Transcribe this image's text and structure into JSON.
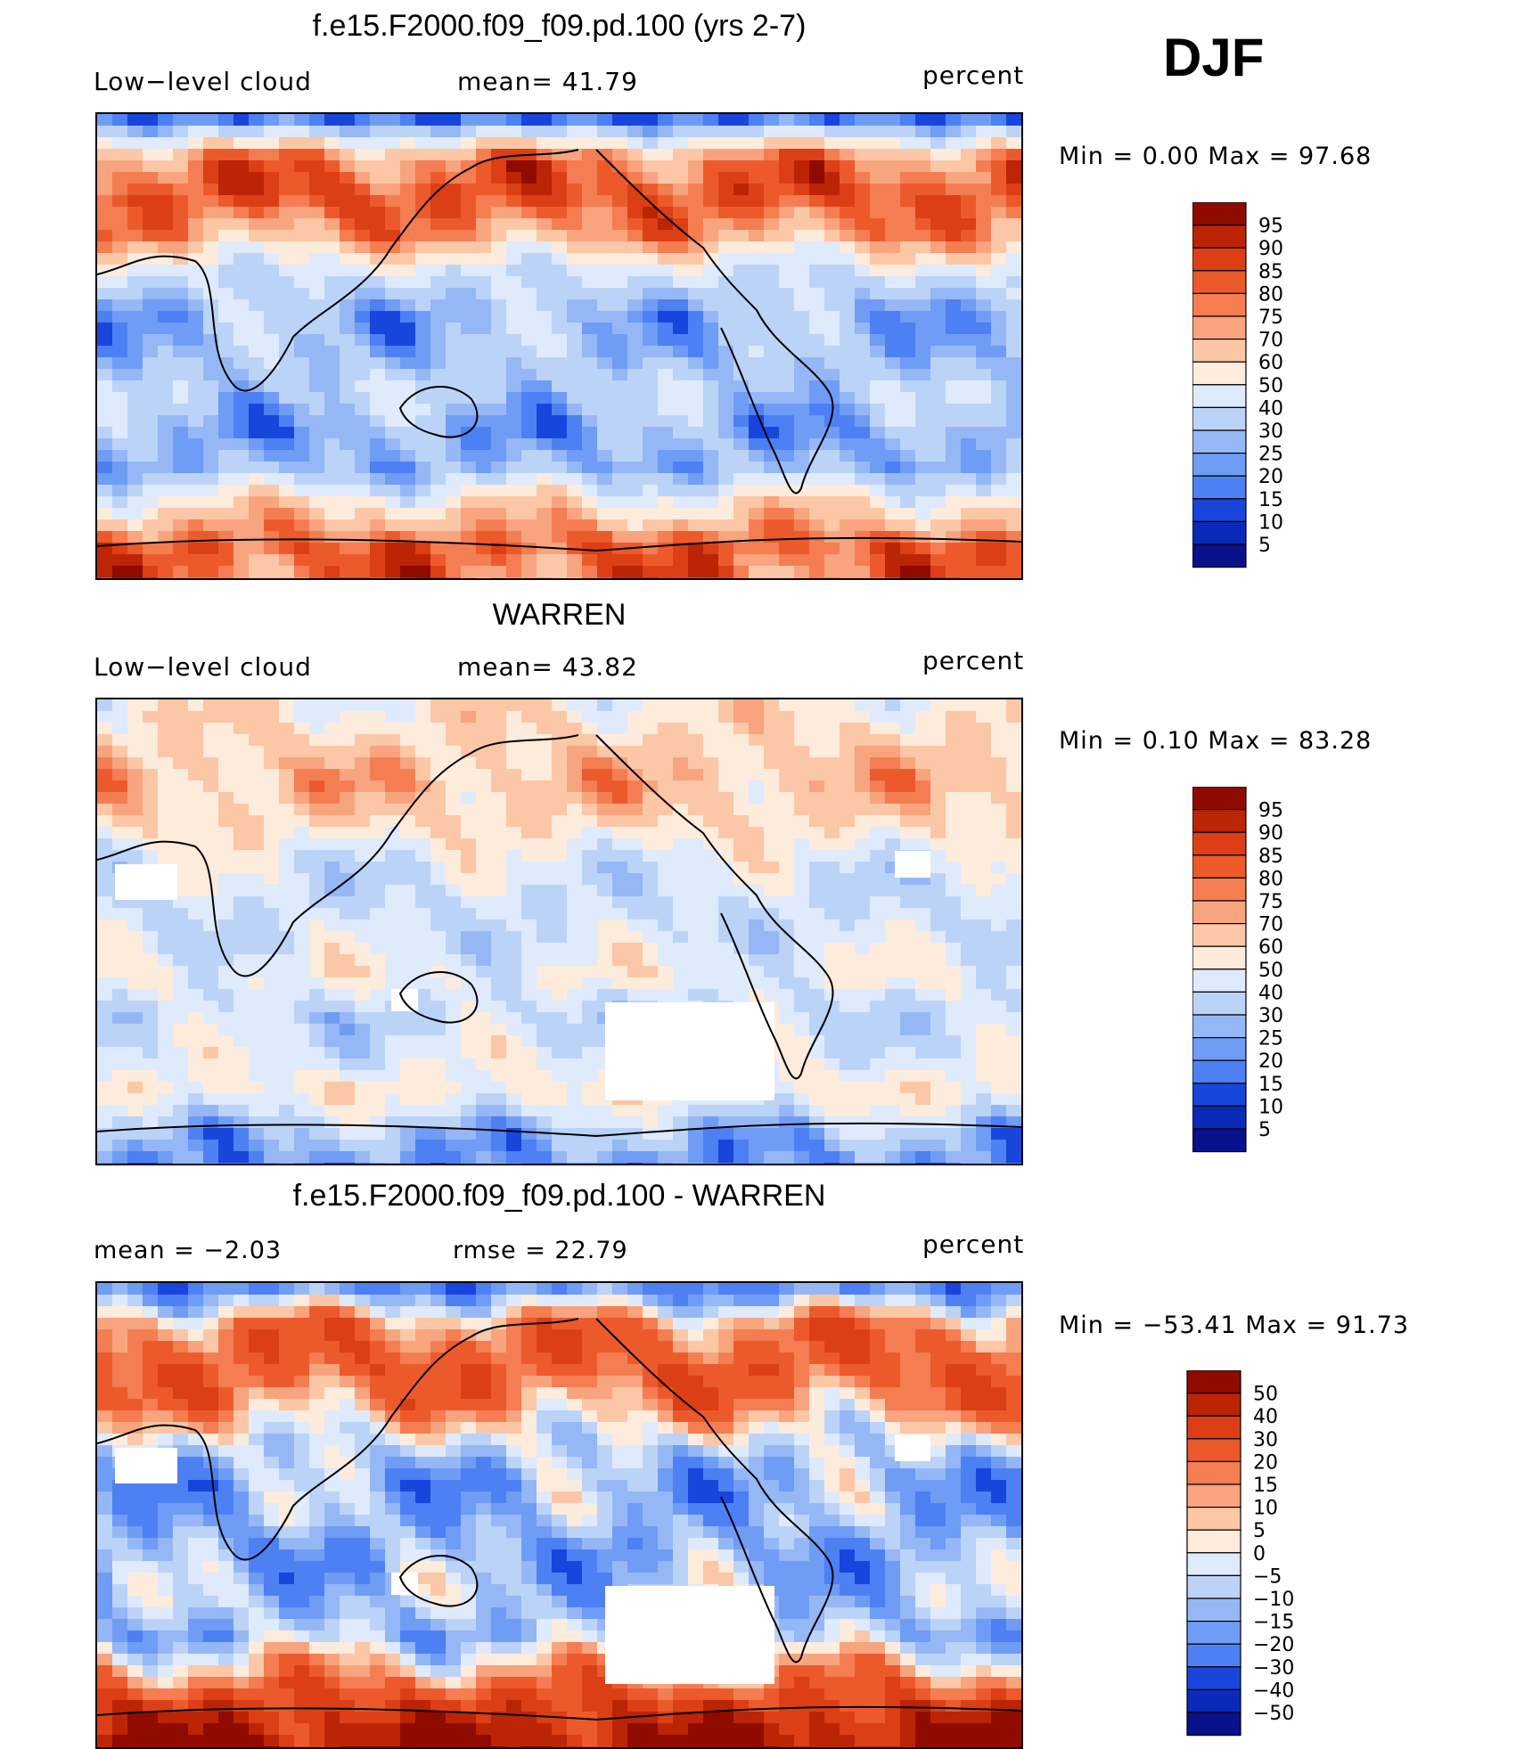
{
  "season": "DJF",
  "colors": {
    "blue_palette": [
      "#08108a",
      "#0b2ab8",
      "#1846dc",
      "#2f63ef",
      "#4d80f3",
      "#6f9cf4",
      "#95b7f5",
      "#bcd3f8",
      "#dfeafc"
    ],
    "red_palette": [
      "#fdebdc",
      "#fbc7a6",
      "#f8a47f",
      "#f47d52",
      "#ec5a2c",
      "#dc3f15",
      "#bb2405",
      "#8f0b00"
    ]
  },
  "chart_data": [
    {
      "type": "heatmap",
      "title": "f.e15.F2000.f09_f09.pd.100 (yrs 2-7)",
      "left_label": "Low−level cloud",
      "center_label": "mean=   41.79",
      "units": "percent",
      "min_max": "Min  =     0.00  Max  =    97.68",
      "colorbar_levels": [
        "95",
        "90",
        "85",
        "80",
        "75",
        "70",
        "60",
        "50",
        "40",
        "30",
        "25",
        "20",
        "15",
        "10",
        "5"
      ],
      "colorbar_colors": [
        "#8f0b00",
        "#bb2405",
        "#dc3f15",
        "#ec5a2c",
        "#f47d52",
        "#f8a47f",
        "#fbc7a6",
        "#fdebdc",
        "#dfeafc",
        "#bcd3f8",
        "#95b7f5",
        "#6f9cf4",
        "#4d80f3",
        "#1846dc",
        "#0b2ab8",
        "#08108a"
      ],
      "zonal_profile_percent": [
        18,
        78,
        85,
        72,
        40,
        28,
        30,
        35,
        25,
        28,
        60,
        82,
        80
      ]
    },
    {
      "type": "heatmap",
      "title": "WARREN",
      "left_label": "Low−level cloud",
      "center_label": "mean=   43.82",
      "units": "percent",
      "min_max": "Min  =     0.10  Max  =    83.28",
      "colorbar_levels": [
        "95",
        "90",
        "85",
        "80",
        "75",
        "70",
        "60",
        "50",
        "40",
        "30",
        "25",
        "20",
        "15",
        "10",
        "5"
      ],
      "colorbar_colors": [
        "#8f0b00",
        "#bb2405",
        "#dc3f15",
        "#ec5a2c",
        "#f47d52",
        "#f8a47f",
        "#fbc7a6",
        "#fdebdc",
        "#dfeafc",
        "#bcd3f8",
        "#95b7f5",
        "#6f9cf4",
        "#4d80f3",
        "#1846dc",
        "#0b2ab8",
        "#08108a"
      ],
      "zonal_profile_percent": [
        55,
        62,
        68,
        60,
        45,
        40,
        42,
        50,
        38,
        45,
        55,
        30,
        20
      ]
    },
    {
      "type": "heatmap",
      "title": "f.e15.F2000.f09_f09.pd.100 - WARREN",
      "left_label": "mean  =    −2.03",
      "center_label": "rmse  =    22.79",
      "units": "percent",
      "min_max": "Min  = −53.41  Max  =    91.73",
      "colorbar_levels": [
        "50",
        "40",
        "30",
        "20",
        "15",
        "10",
        "5",
        "0",
        "−5",
        "−10",
        "−15",
        "−20",
        "−30",
        "−40",
        "−50"
      ],
      "colorbar_colors": [
        "#8f0b00",
        "#bb2405",
        "#dc3f15",
        "#ec5a2c",
        "#f47d52",
        "#f8a47f",
        "#fbc7a6",
        "#fdebdc",
        "#dfeafc",
        "#bcd3f8",
        "#95b7f5",
        "#6f9cf4",
        "#4d80f3",
        "#1846dc",
        "#0b2ab8",
        "#08108a"
      ],
      "zonal_profile_percent": [
        -20,
        20,
        25,
        15,
        -5,
        -15,
        -12,
        -15,
        -10,
        -10,
        15,
        40,
        55
      ]
    }
  ]
}
